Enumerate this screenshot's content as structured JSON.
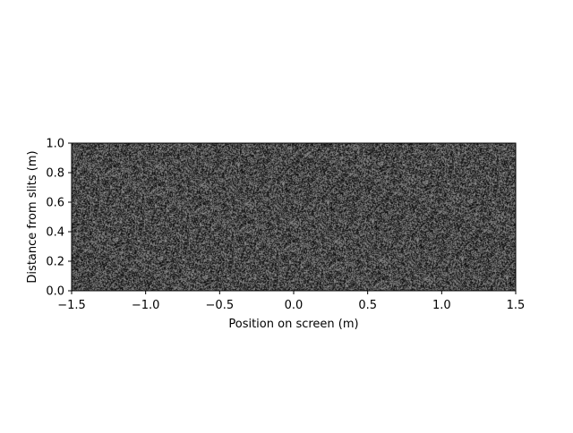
{
  "chart_data": {
    "type": "heatmap",
    "title": "",
    "xlabel": "Position on screen (m)",
    "ylabel": "Distance from slits (m)",
    "xlim": [
      -1.5,
      1.5
    ],
    "ylim": [
      0.0,
      1.0
    ],
    "xticks": [
      -1.5,
      -1.0,
      -0.5,
      0.0,
      0.5,
      1.0,
      1.5
    ],
    "yticks": [
      0.0,
      0.2,
      0.4,
      0.6,
      0.8,
      1.0
    ],
    "xtick_labels": [
      "−1.5",
      "−1.0",
      "−0.5",
      "0.0",
      "0.5",
      "1.0",
      "1.5"
    ],
    "ytick_labels": [
      "0.0",
      "0.2",
      "0.4",
      "0.6",
      "0.8",
      "1.0"
    ],
    "colormap": "gray",
    "pattern": "uniform random noise (no visible interference fringes)",
    "mean_gray": "#4d4d4d",
    "grid": false,
    "legend": false
  }
}
